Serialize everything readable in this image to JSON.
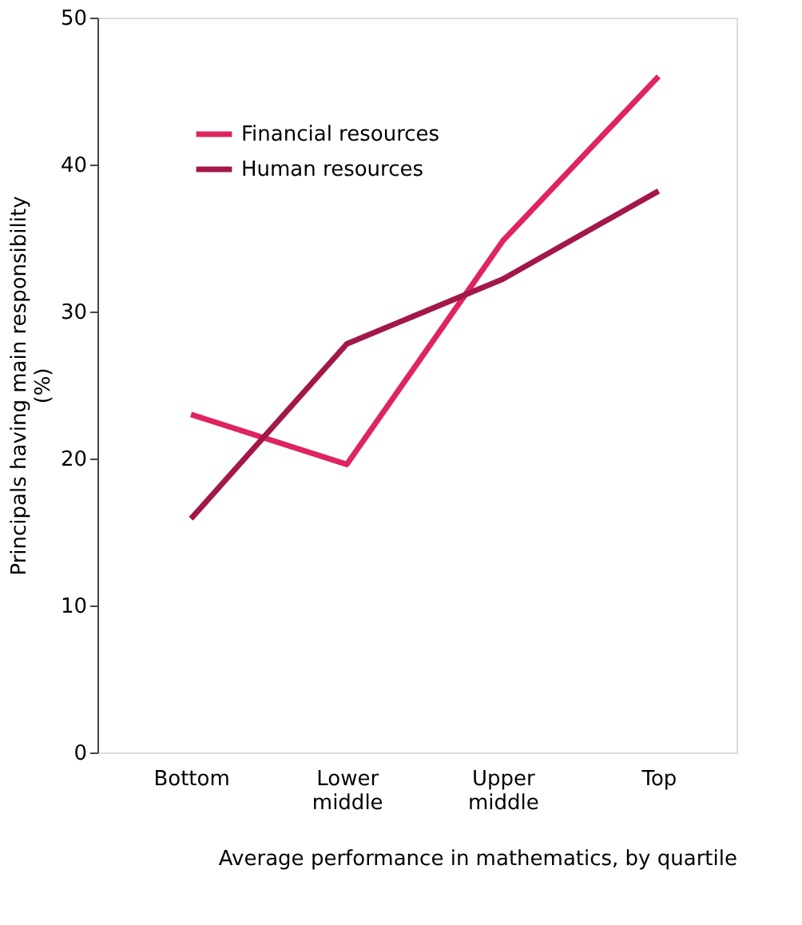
{
  "chart_data": {
    "type": "line",
    "xlabel": "Average performance in mathematics, by quartile",
    "ylabel": "Principals having main responsibility (%)",
    "categories": [
      "Bottom",
      "Lower middle",
      "Upper middle",
      "Top"
    ],
    "series": [
      {
        "name": "Financial resources",
        "color": "#e0245e",
        "values": [
          23.0,
          19.6,
          34.8,
          46.0
        ]
      },
      {
        "name": "Human resources",
        "color": "#a3174a",
        "values": [
          15.9,
          27.8,
          32.2,
          38.2
        ]
      }
    ],
    "ylim": [
      0,
      50
    ],
    "yticks": [
      0,
      10,
      20,
      30,
      40,
      50
    ],
    "grid": false,
    "legend": "top left",
    "marker": "none",
    "line_style": "solid"
  }
}
